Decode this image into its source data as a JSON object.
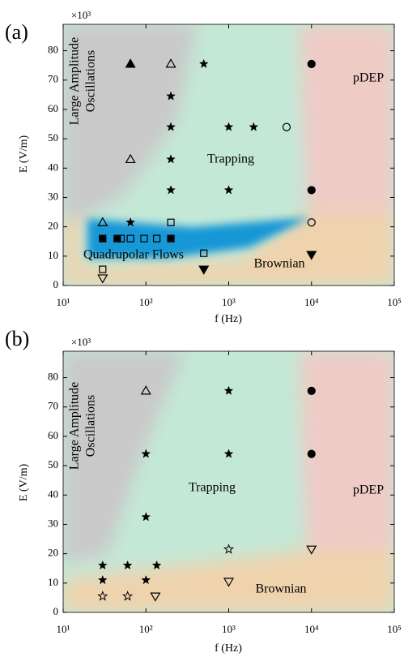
{
  "chart_data": [
    {
      "type": "scatter",
      "panel_label": "(a)",
      "multiplier": "×10³",
      "xlabel": "f (Hz)",
      "ylabel": "E (V/m)",
      "log_x": true,
      "xlim": [
        10,
        100000
      ],
      "xticks": [
        {
          "value": 10,
          "label": "10¹"
        },
        {
          "value": 100,
          "label": "10²"
        },
        {
          "value": 1000,
          "label": "10³"
        },
        {
          "value": 10000,
          "label": "10⁴"
        },
        {
          "value": 100000,
          "label": "10⁵"
        }
      ],
      "ylim": [
        0,
        89
      ],
      "yticks": [
        0,
        10,
        20,
        30,
        40,
        50,
        60,
        70,
        80
      ],
      "annotations": [
        "Large Amplitude",
        "Oscillations",
        "Trapping",
        "pDEP",
        "Quadrupolar Flows",
        "Brownian"
      ],
      "series": [
        {
          "marker": "triangle-up",
          "filled": true,
          "color": "#000000",
          "x": [
            65
          ],
          "values": [
            75.5
          ]
        },
        {
          "marker": "triangle-up",
          "filled": false,
          "color": "#000000",
          "x": [
            200,
            65,
            30
          ],
          "values": [
            75.5,
            43,
            21.5
          ]
        },
        {
          "marker": "star",
          "filled": true,
          "color": "#000000",
          "x": [
            500,
            200,
            200,
            1000,
            2000,
            200,
            200,
            1000,
            65
          ],
          "values": [
            75.5,
            64.5,
            54,
            54,
            54,
            43,
            32.5,
            32.5,
            21.5
          ]
        },
        {
          "marker": "circle",
          "filled": false,
          "color": "#000000",
          "x": [
            5000,
            10000
          ],
          "values": [
            54,
            21.5
          ]
        },
        {
          "marker": "circle",
          "filled": true,
          "color": "#000000",
          "x": [
            10000,
            10000
          ],
          "values": [
            75.5,
            32.5
          ]
        },
        {
          "marker": "square",
          "filled": false,
          "color": "#000000",
          "x": [
            200,
            50,
            65,
            95,
            135,
            500,
            30
          ],
          "values": [
            21.5,
            16,
            16,
            16,
            16,
            11,
            5.5
          ]
        },
        {
          "marker": "square",
          "filled": true,
          "color": "#000000",
          "x": [
            30,
            45,
            200
          ],
          "values": [
            16,
            16,
            16
          ]
        },
        {
          "marker": "triangle-down",
          "filled": true,
          "color": "#000000",
          "x": [
            500,
            10000
          ],
          "values": [
            5.5,
            10.5
          ]
        },
        {
          "marker": "triangle-down",
          "filled": false,
          "color": "#000000",
          "x": [
            30
          ],
          "values": [
            2.5
          ]
        }
      ]
    },
    {
      "type": "scatter",
      "panel_label": "(b)",
      "multiplier": "×10³",
      "xlabel": "f (Hz)",
      "ylabel": "E (V/m)",
      "log_x": true,
      "xlim": [
        10,
        100000
      ],
      "xticks": [
        {
          "value": 10,
          "label": "10¹"
        },
        {
          "value": 100,
          "label": "10²"
        },
        {
          "value": 1000,
          "label": "10³"
        },
        {
          "value": 10000,
          "label": "10⁴"
        },
        {
          "value": 100000,
          "label": "10⁵"
        }
      ],
      "ylim": [
        0,
        89
      ],
      "yticks": [
        0,
        10,
        20,
        30,
        40,
        50,
        60,
        70,
        80
      ],
      "annotations": [
        "Large Amplitude",
        "Oscillations",
        "Trapping",
        "pDEP",
        "Brownian"
      ],
      "series": [
        {
          "marker": "triangle-up",
          "filled": false,
          "color": "#000000",
          "x": [
            100
          ],
          "values": [
            75.5
          ]
        },
        {
          "marker": "star",
          "filled": true,
          "color": "#000000",
          "x": [
            1000,
            100,
            1000,
            100,
            30,
            60,
            135,
            30,
            100
          ],
          "values": [
            75.5,
            54,
            54,
            32.5,
            16,
            16,
            16,
            11,
            11
          ]
        },
        {
          "marker": "star",
          "filled": false,
          "color": "#000000",
          "x": [
            1000,
            30,
            60
          ],
          "values": [
            21.5,
            5.5,
            5.5
          ]
        },
        {
          "marker": "circle",
          "filled": true,
          "color": "#000000",
          "x": [
            10000,
            10000
          ],
          "values": [
            75.5,
            54
          ]
        },
        {
          "marker": "triangle-down",
          "filled": false,
          "color": "#000000",
          "x": [
            10000,
            1000,
            130
          ],
          "values": [
            21.5,
            10.5,
            5.5
          ]
        }
      ]
    }
  ]
}
